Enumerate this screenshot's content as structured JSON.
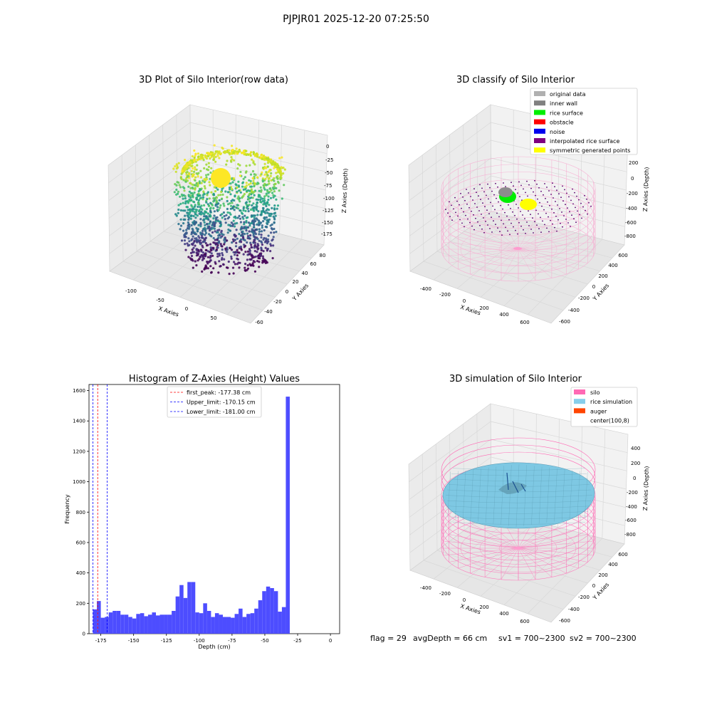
{
  "suptitle": "PJPJR01 2025-12-20 07:25:50",
  "footer": {
    "flag": "flag = 29",
    "avg": "avgDepth = 66 cm",
    "sv1": "sv1 = 700~2300",
    "sv2": "sv2 = 700~2300"
  },
  "chart_data": [
    {
      "type": "scatter",
      "title": "3D Plot of Silo Interior(row data)",
      "xlabel": "X Axies",
      "ylabel": "Y Axies",
      "zlabel": "Z Axies (Depth)",
      "x_ticks": [
        "-100",
        "-50",
        "0",
        "50"
      ],
      "y_ticks": [
        "-60",
        "-40",
        "-20",
        "0",
        "20",
        "40",
        "60",
        "80"
      ],
      "z_ticks": [
        "0",
        "-25",
        "-50",
        "-75",
        "-100",
        "-125",
        "-150",
        "-175"
      ],
      "colormap": "viridis",
      "zlim": [
        -181,
        0
      ]
    },
    {
      "type": "scatter",
      "title": "3D classify of Silo Interior",
      "xlabel": "X Axies",
      "ylabel": "Y Axies",
      "zlabel": "Z Axies (Depth)",
      "x_ticks": [
        "-400",
        "-200",
        "0",
        "200",
        "400",
        "600"
      ],
      "y_ticks": [
        "-600",
        "-400",
        "-200",
        "0",
        "200",
        "400",
        "600"
      ],
      "z_ticks": [
        "200",
        "0",
        "-200",
        "-400",
        "-600",
        "-800"
      ],
      "legend_position": "top-right",
      "legend": [
        {
          "label": "original data",
          "color": "#b0b0b0"
        },
        {
          "label": "inner wall",
          "color": "#808080"
        },
        {
          "label": "rice surface",
          "color": "#00ee00"
        },
        {
          "label": "obstacle",
          "color": "#ff0000"
        },
        {
          "label": "noise",
          "color": "#0000ee"
        },
        {
          "label": "interpolated rice surface",
          "color": "#800080"
        },
        {
          "label": "symmetric generated points",
          "color": "#ffff00"
        }
      ]
    },
    {
      "type": "bar",
      "title": "Histogram of Z-Axies (Height) Values",
      "xlabel": "Depth (cm)",
      "ylabel": "Frequency",
      "xlim": [
        -184,
        7
      ],
      "ylim": [
        0,
        1640
      ],
      "x_ticks": [
        "-175",
        "-150",
        "-125",
        "-100",
        "-75",
        "-50",
        "-25",
        "0"
      ],
      "y_ticks": [
        "0",
        "200",
        "400",
        "600",
        "800",
        "1000",
        "1200",
        "1400",
        "1600"
      ],
      "bin_start": -181,
      "bin_width": 3.0,
      "bar_color": "#4d4dff",
      "values": [
        160,
        215,
        105,
        110,
        140,
        150,
        150,
        125,
        125,
        110,
        100,
        130,
        135,
        115,
        125,
        140,
        120,
        125,
        125,
        125,
        150,
        245,
        320,
        235,
        340,
        340,
        140,
        135,
        200,
        150,
        110,
        135,
        125,
        110,
        110,
        105,
        130,
        165,
        110,
        130,
        135,
        165,
        220,
        280,
        310,
        300,
        280,
        145,
        175,
        1560
      ],
      "vlines": [
        {
          "x": -177.38,
          "color": "#ff0000",
          "label": "first_peak: -177.38 cm"
        },
        {
          "x": -170.15,
          "color": "#0000ff",
          "label": "Upper_limit: -170.15 cm"
        },
        {
          "x": -181.0,
          "color": "#0000ff",
          "label": "Lower_limit: -181.00 cm"
        }
      ],
      "legend_position": "top-center"
    },
    {
      "type": "surface",
      "title": "3D simulation of Silo Interior",
      "xlabel": "X Axies",
      "ylabel": "Y Axies",
      "zlabel": "Z Axies (Depth)",
      "x_ticks": [
        "-400",
        "-200",
        "0",
        "200",
        "400",
        "600"
      ],
      "y_ticks": [
        "-600",
        "-400",
        "-200",
        "0",
        "200",
        "400",
        "600"
      ],
      "z_ticks": [
        "400",
        "200",
        "0",
        "-200",
        "-400",
        "-600",
        "-800"
      ],
      "legend_position": "top-right",
      "legend": [
        {
          "label": "silo",
          "color": "#ff69b4"
        },
        {
          "label": "rice simulation",
          "color": "#87ceeb"
        },
        {
          "label": "auger",
          "color": "#ff4500"
        },
        {
          "label": "center(100,8)",
          "color": "none"
        }
      ]
    }
  ]
}
